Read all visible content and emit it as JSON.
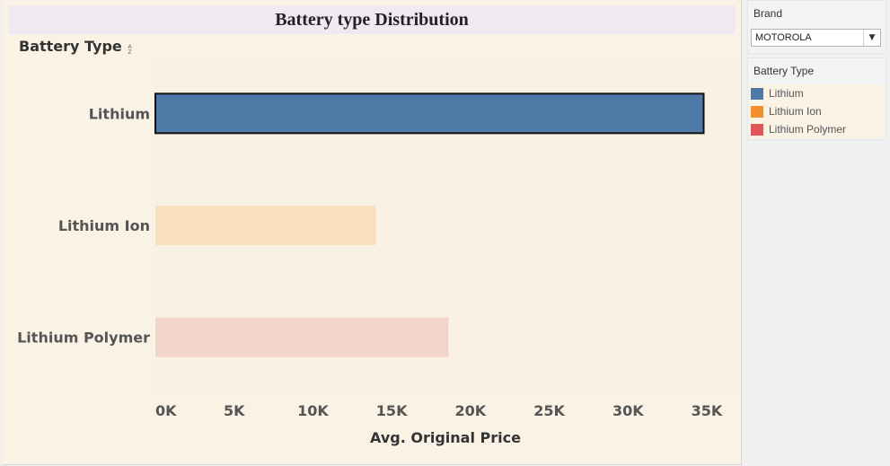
{
  "title": "Battery type Distribution",
  "row_header": "Battery Type",
  "chart_data": {
    "type": "bar",
    "orientation": "horizontal",
    "categories": [
      "Lithium",
      "Lithium Ion",
      "Lithium Polymer"
    ],
    "values": [
      34800,
      14000,
      18600
    ],
    "colors": [
      "#4e79a7",
      "#f7dfc0",
      "#f2d4c8"
    ],
    "selected": "Lithium",
    "xlabel": "Avg. Original Price",
    "ylabel": "Battery Type",
    "xlim": [
      0,
      35000
    ],
    "xticks": [
      0,
      5000,
      10000,
      15000,
      20000,
      25000,
      30000,
      35000
    ],
    "xtick_labels": [
      "0K",
      "5K",
      "10K",
      "15K",
      "20K",
      "25K",
      "30K",
      "35K"
    ],
    "grid": false
  },
  "filter": {
    "title": "Brand",
    "selected": "MOTOROLA"
  },
  "legend": {
    "title": "Battery Type",
    "items": [
      {
        "label": "Lithium",
        "color": "#4e79a7"
      },
      {
        "label": "Lithium Ion",
        "color": "#f28e2b"
      },
      {
        "label": "Lithium Polymer",
        "color": "#e15759"
      }
    ]
  }
}
